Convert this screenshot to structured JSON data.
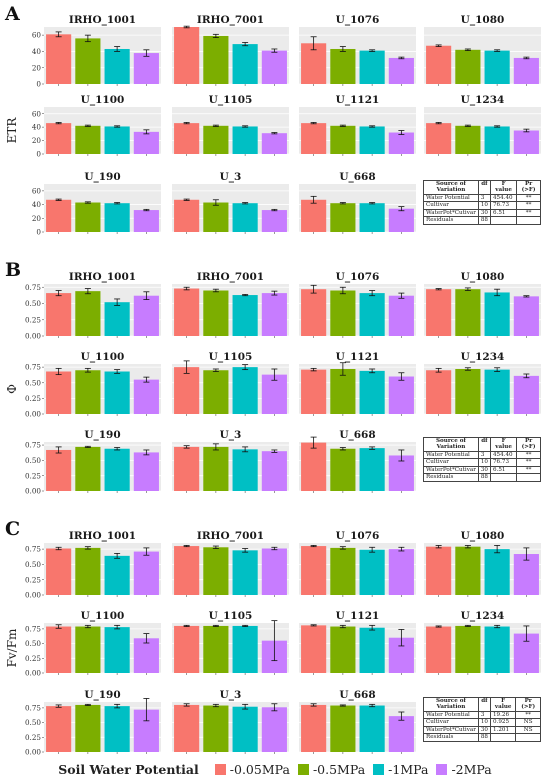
{
  "figure": {
    "cultivars": [
      "IRHO_1001",
      "IRHO_7001",
      "U_1076",
      "U_1080",
      "U_1100",
      "U_1105",
      "U_1121",
      "U_1234",
      "U_190",
      "U_3",
      "U_668"
    ],
    "legend_title": "Soil Water Potential",
    "treatments": [
      "-0.05MPa",
      "-0.5MPa",
      "-1MPa",
      "-2MPa"
    ],
    "colors": [
      "#f8766d",
      "#7cae00",
      "#00bfc4",
      "#c77cff"
    ]
  },
  "chart_data": [
    {
      "type": "bar",
      "panel": "A",
      "ylabel": "ETR",
      "ylim": [
        0,
        70
      ],
      "yticks": [
        0,
        20,
        40,
        60
      ],
      "categories": [
        "-0.05MPa",
        "-0.5MPa",
        "-1MPa",
        "-2MPa"
      ],
      "subplots": [
        {
          "name": "IRHO_1001",
          "values": [
            61,
            56,
            43,
            38
          ],
          "errors": [
            3,
            4,
            3,
            4
          ]
        },
        {
          "name": "IRHO_7001",
          "values": [
            70,
            59,
            49,
            41
          ],
          "errors": [
            1,
            2,
            2,
            2
          ]
        },
        {
          "name": "U_1076",
          "values": [
            50,
            43,
            41,
            32
          ],
          "errors": [
            8,
            3,
            1,
            1
          ]
        },
        {
          "name": "U_1080",
          "values": [
            47,
            42,
            41,
            32
          ],
          "errors": [
            1,
            1,
            1,
            1
          ]
        },
        {
          "name": "U_1100",
          "values": [
            46,
            42,
            41,
            33
          ],
          "errors": [
            1,
            1,
            1,
            3
          ]
        },
        {
          "name": "U_1105",
          "values": [
            46,
            42,
            41,
            31
          ],
          "errors": [
            1,
            1,
            1,
            1
          ]
        },
        {
          "name": "U_1121",
          "values": [
            46,
            42,
            41,
            32
          ],
          "errors": [
            1,
            1,
            1,
            3
          ]
        },
        {
          "name": "U_1234",
          "values": [
            46,
            42,
            41,
            35
          ],
          "errors": [
            1,
            1,
            1,
            2
          ]
        },
        {
          "name": "U_190",
          "values": [
            47,
            43,
            42,
            32
          ],
          "errors": [
            1,
            1,
            1,
            1
          ]
        },
        {
          "name": "U_3",
          "values": [
            47,
            43,
            42,
            32
          ],
          "errors": [
            1,
            4,
            1,
            1
          ]
        },
        {
          "name": "U_668",
          "values": [
            47,
            42,
            42,
            34
          ],
          "errors": [
            5,
            1,
            1,
            3
          ]
        }
      ],
      "table": {
        "headers": [
          "Source of\nVariation",
          "df",
          "F value",
          "Pr (>F)"
        ],
        "rows": [
          [
            "Water Potential",
            "3",
            "454.40",
            "**"
          ],
          [
            "Cultivar",
            "10",
            "76.73",
            "**"
          ],
          [
            "WaterPot*Cutivar",
            "30",
            "6.51",
            "**"
          ],
          [
            "Residuals",
            "88",
            "",
            ""
          ]
        ]
      }
    },
    {
      "type": "bar",
      "panel": "B",
      "ylabel": "Φ",
      "ylim": [
        0,
        0.8
      ],
      "yticks": [
        0,
        0.25,
        0.5,
        0.75
      ],
      "categories": [
        "-0.05MPa",
        "-0.5MPa",
        "-1MPa",
        "-2MPa"
      ],
      "subplots": [
        {
          "name": "IRHO_1001",
          "values": [
            0.66,
            0.69,
            0.52,
            0.62
          ],
          "errors": [
            0.04,
            0.04,
            0.05,
            0.06
          ]
        },
        {
          "name": "IRHO_7001",
          "values": [
            0.73,
            0.7,
            0.63,
            0.66
          ],
          "errors": [
            0.02,
            0.02,
            0.01,
            0.03
          ]
        },
        {
          "name": "U_1076",
          "values": [
            0.72,
            0.7,
            0.66,
            0.62
          ],
          "errors": [
            0.06,
            0.05,
            0.04,
            0.04
          ]
        },
        {
          "name": "U_1080",
          "values": [
            0.72,
            0.72,
            0.67,
            0.61
          ],
          "errors": [
            0.01,
            0.02,
            0.05,
            0.01
          ]
        },
        {
          "name": "U_1100",
          "values": [
            0.68,
            0.7,
            0.68,
            0.55
          ],
          "errors": [
            0.05,
            0.03,
            0.03,
            0.04
          ]
        },
        {
          "name": "U_1105",
          "values": [
            0.75,
            0.7,
            0.75,
            0.63
          ],
          "errors": [
            0.1,
            0.02,
            0.04,
            0.09
          ]
        },
        {
          "name": "U_1121",
          "values": [
            0.71,
            0.72,
            0.69,
            0.6
          ],
          "errors": [
            0.02,
            0.1,
            0.03,
            0.06
          ]
        },
        {
          "name": "U_1234",
          "values": [
            0.7,
            0.72,
            0.71,
            0.61
          ],
          "errors": [
            0.03,
            0.02,
            0.03,
            0.03
          ]
        },
        {
          "name": "U_190",
          "values": [
            0.67,
            0.72,
            0.69,
            0.63
          ],
          "errors": [
            0.05,
            0.01,
            0.02,
            0.04
          ]
        },
        {
          "name": "U_3",
          "values": [
            0.72,
            0.72,
            0.68,
            0.65
          ],
          "errors": [
            0.02,
            0.05,
            0.04,
            0.02
          ]
        },
        {
          "name": "U_668",
          "values": [
            0.79,
            0.69,
            0.7,
            0.58
          ],
          "errors": [
            0.09,
            0.02,
            0.02,
            0.09
          ]
        }
      ],
      "table": {
        "headers": [
          "Source of\nVariation",
          "df",
          "F value",
          "Pr (>F)"
        ],
        "rows": [
          [
            "Water Potential",
            "3",
            "454.40",
            "**"
          ],
          [
            "Cultivar",
            "10",
            "76.73",
            "**"
          ],
          [
            "WaterPot*Cutivar",
            "30",
            "6.51",
            "**"
          ],
          [
            "Residuals",
            "88",
            "",
            ""
          ]
        ]
      }
    },
    {
      "type": "bar",
      "panel": "C",
      "ylabel": "Fv/Fm",
      "ylim": [
        0,
        0.85
      ],
      "yticks": [
        0,
        0.25,
        0.5,
        0.75
      ],
      "categories": [
        "-0.05MPa",
        "-0.5MPa",
        "-1MPa",
        "-2MPa"
      ],
      "subplots": [
        {
          "name": "IRHO_1001",
          "values": [
            0.76,
            0.77,
            0.64,
            0.71
          ],
          "errors": [
            0.02,
            0.02,
            0.04,
            0.06
          ]
        },
        {
          "name": "IRHO_7001",
          "values": [
            0.8,
            0.78,
            0.73,
            0.76
          ],
          "errors": [
            0.01,
            0.02,
            0.03,
            0.02
          ]
        },
        {
          "name": "U_1076",
          "values": [
            0.8,
            0.77,
            0.74,
            0.75
          ],
          "errors": [
            0.01,
            0.02,
            0.04,
            0.03
          ]
        },
        {
          "name": "U_1080",
          "values": [
            0.79,
            0.79,
            0.75,
            0.67
          ],
          "errors": [
            0.02,
            0.02,
            0.06,
            0.1
          ]
        },
        {
          "name": "U_1100",
          "values": [
            0.79,
            0.79,
            0.78,
            0.59
          ],
          "errors": [
            0.03,
            0.02,
            0.03,
            0.08
          ]
        },
        {
          "name": "U_1105",
          "values": [
            0.8,
            0.8,
            0.8,
            0.55
          ],
          "errors": [
            0.01,
            0.01,
            0.01,
            0.34
          ]
        },
        {
          "name": "U_1121",
          "values": [
            0.81,
            0.79,
            0.77,
            0.6
          ],
          "errors": [
            0.01,
            0.02,
            0.04,
            0.14
          ]
        },
        {
          "name": "U_1234",
          "values": [
            0.79,
            0.8,
            0.79,
            0.67
          ],
          "errors": [
            0.01,
            0.01,
            0.02,
            0.13
          ]
        },
        {
          "name": "U_190",
          "values": [
            0.78,
            0.8,
            0.78,
            0.72
          ],
          "errors": [
            0.02,
            0.01,
            0.03,
            0.19
          ]
        },
        {
          "name": "U_3",
          "values": [
            0.8,
            0.79,
            0.77,
            0.76
          ],
          "errors": [
            0.02,
            0.02,
            0.04,
            0.06
          ]
        },
        {
          "name": "U_668",
          "values": [
            0.8,
            0.79,
            0.79,
            0.61
          ],
          "errors": [
            0.02,
            0.01,
            0.02,
            0.07
          ]
        }
      ],
      "table": {
        "headers": [
          "Source of\nVariation",
          "df",
          "F value",
          "Pr (>F)"
        ],
        "rows": [
          [
            "Water Potential",
            "3",
            "19.26",
            "**"
          ],
          [
            "Cultivar",
            "10",
            "0.925",
            "NS"
          ],
          [
            "WaterPot*Cutivar",
            "30",
            "1.201",
            "NS"
          ],
          [
            "Residuals",
            "88",
            "",
            ""
          ]
        ]
      }
    }
  ]
}
